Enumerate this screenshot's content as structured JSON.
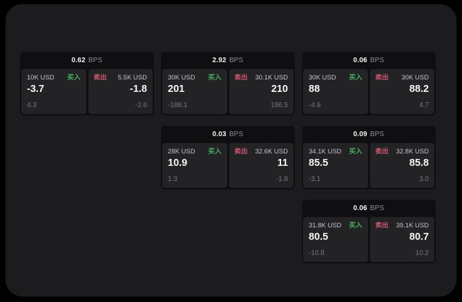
{
  "colors": {
    "background": "#000000",
    "panel": "#1c1c1e",
    "card": "#0f0f11",
    "subpanel": "#232325",
    "buy_green": "#4aab62",
    "sell_red": "#c9566e",
    "text_primary": "#f7f7f7",
    "text_secondary": "#c6c6cb",
    "text_muted": "#77777c",
    "bps_unit_gray": "#8e8e93"
  },
  "labels": {
    "bps_unit": "BPS",
    "buy": "买入",
    "sell": "卖出"
  },
  "cards": [
    {
      "bps": "0.62",
      "buy": {
        "amount": "10K USD",
        "price": "-3.7",
        "delta": "4.3"
      },
      "sell": {
        "amount": "5.5K USD",
        "price": "-1.8",
        "delta": "-2.6"
      }
    },
    {
      "bps": "2.92",
      "buy": {
        "amount": "30K USD",
        "price": "201",
        "delta": "-188.1"
      },
      "sell": {
        "amount": "30.1K USD",
        "price": "210",
        "delta": "196.5"
      }
    },
    {
      "bps": "0.06",
      "buy": {
        "amount": "30K USD",
        "price": "88",
        "delta": "-4.9"
      },
      "sell": {
        "amount": "30K USD",
        "price": "88.2",
        "delta": "4.7"
      }
    },
    {
      "bps": "0.03",
      "buy": {
        "amount": "28K USD",
        "price": "10.9",
        "delta": "1.3"
      },
      "sell": {
        "amount": "32.6K USD",
        "price": "11",
        "delta": "-1.8"
      }
    },
    {
      "bps": "0.09",
      "buy": {
        "amount": "34.1K USD",
        "price": "85.5",
        "delta": "-3.1"
      },
      "sell": {
        "amount": "32.8K USD",
        "price": "85.8",
        "delta": "3.0"
      }
    },
    {
      "bps": "0.06",
      "buy": {
        "amount": "31.8K USD",
        "price": "80.5",
        "delta": "-10.8"
      },
      "sell": {
        "amount": "39.1K USD",
        "price": "80.7",
        "delta": "10.2"
      }
    }
  ]
}
